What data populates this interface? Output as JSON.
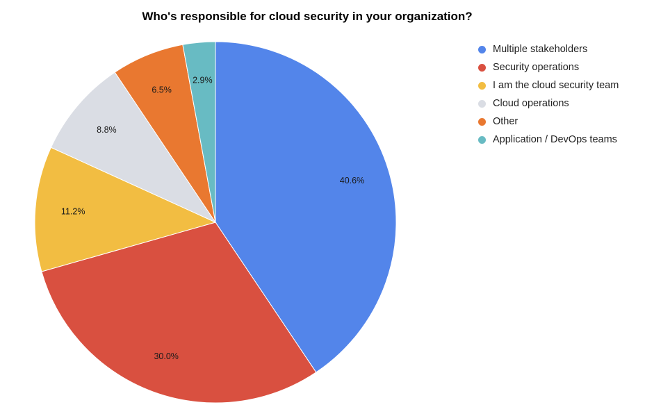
{
  "chart_data": {
    "type": "pie",
    "title": "Who's responsible for cloud security in your organization?",
    "legend_position": "right",
    "slices": [
      {
        "label": "Multiple stakeholders",
        "value": 40.6,
        "display": "40.6%",
        "color": "#5385EA"
      },
      {
        "label": "Security operations",
        "value": 30.0,
        "display": "30.0%",
        "color": "#D95040"
      },
      {
        "label": "I am the cloud security team",
        "value": 11.2,
        "display": "11.2%",
        "color": "#F2BD42"
      },
      {
        "label": "Cloud operations",
        "value": 8.8,
        "display": "8.8%",
        "color": "#DADDE4"
      },
      {
        "label": "Other",
        "value": 6.5,
        "display": "6.5%",
        "color": "#E97830"
      },
      {
        "label": "Application / DevOps teams",
        "value": 2.9,
        "display": "2.9%",
        "color": "#68BBC3"
      }
    ]
  }
}
